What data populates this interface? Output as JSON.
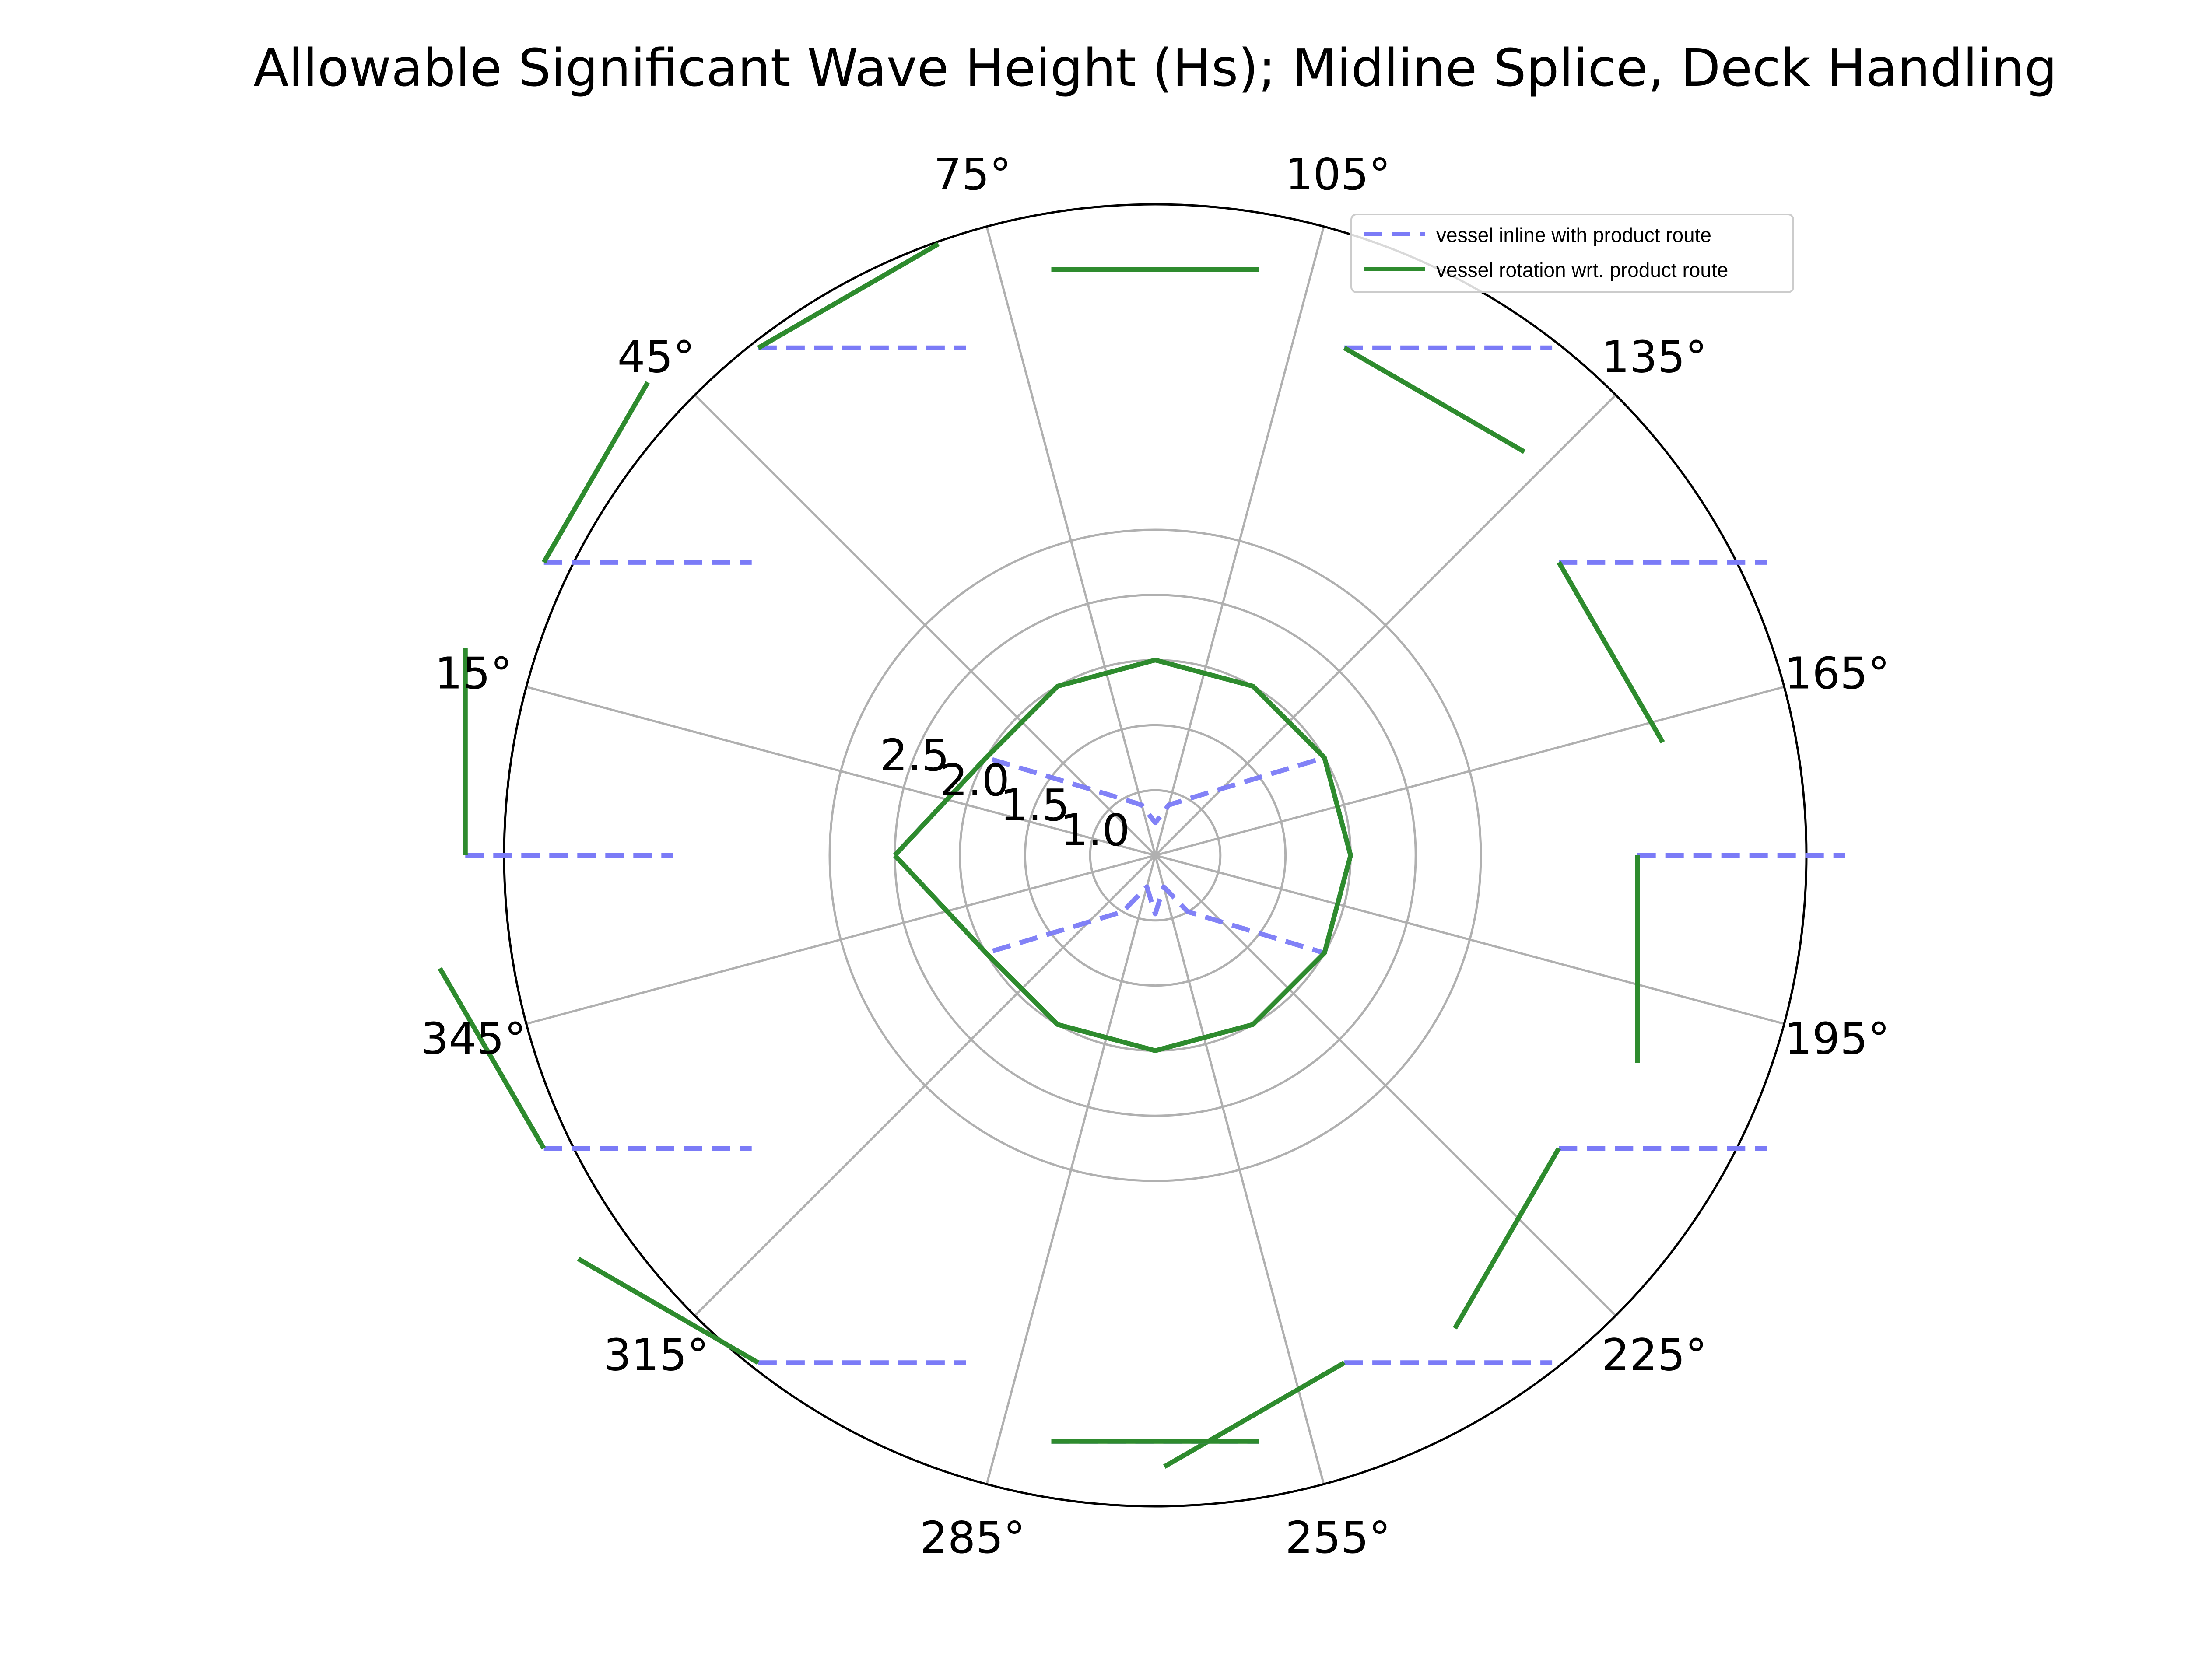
{
  "chart_data": {
    "type": "line",
    "subtype": "polar",
    "title": "Allowable Significant Wave Height (Hs); Midline Splice, Deck Handling",
    "theta_direction": "clockwise",
    "theta_zero_location": "left",
    "theta_tick_labels": [
      "15°",
      "45°",
      "75°",
      "105°",
      "135°",
      "165°",
      "195°",
      "225°",
      "255°",
      "285°",
      "315°",
      "345°"
    ],
    "radial_tick_labels": [
      "1.0",
      "1.5",
      "2.0",
      "2.5"
    ],
    "rlim": [
      0.5,
      5.5
    ],
    "grid": true,
    "legend_location": "upper right",
    "series": [
      {
        "name": "vessel inline with product route",
        "style": "dashed",
        "color": "#7b7bf7",
        "points": [
          {
            "theta": 0,
            "r": 2.5
          },
          {
            "theta": 30,
            "r": 2.0
          },
          {
            "theta": 60,
            "r": 1.0
          },
          {
            "theta": 75,
            "r": 0.9
          },
          {
            "theta": 90,
            "r": 0.75
          },
          {
            "theta": 105,
            "r": 0.9
          },
          {
            "theta": 120,
            "r": 1.0
          },
          {
            "theta": 150,
            "r": 2.0
          },
          {
            "theta": 180,
            "r": 2.0
          },
          {
            "theta": 210,
            "r": 2.0
          },
          {
            "theta": 240,
            "r": 1.0
          },
          {
            "theta": 255,
            "r": 0.75
          },
          {
            "theta": 270,
            "r": 0.95
          },
          {
            "theta": 285,
            "r": 0.75
          },
          {
            "theta": 300,
            "r": 1.0
          },
          {
            "theta": 330,
            "r": 2.0
          },
          {
            "theta": 360,
            "r": 2.5
          }
        ]
      },
      {
        "name": "vessel rotation wrt. product route",
        "style": "solid",
        "color": "#2e8b2e",
        "points": [
          {
            "theta": 0,
            "r": 2.5
          },
          {
            "theta": 30,
            "r": 2.0
          },
          {
            "theta": 60,
            "r": 2.0
          },
          {
            "theta": 90,
            "r": 2.0
          },
          {
            "theta": 120,
            "r": 2.0
          },
          {
            "theta": 150,
            "r": 2.0
          },
          {
            "theta": 180,
            "r": 2.0
          },
          {
            "theta": 210,
            "r": 2.0
          },
          {
            "theta": 240,
            "r": 2.0
          },
          {
            "theta": 270,
            "r": 2.0
          },
          {
            "theta": 300,
            "r": 2.0
          },
          {
            "theta": 330,
            "r": 2.0
          },
          {
            "theta": 360,
            "r": 2.5
          }
        ]
      }
    ],
    "segment_pairs": [
      {
        "theta": 90,
        "r": 5.0,
        "inline_angle": 0,
        "rotation_angle": 0
      },
      {
        "theta": 120,
        "r": 5.0,
        "inline_angle": 0,
        "rotation_angle": -30
      },
      {
        "theta": 150,
        "r": 5.0,
        "inline_angle": 0,
        "rotation_angle": -60
      },
      {
        "theta": 180,
        "r": 5.0,
        "inline_angle": 0,
        "rotation_angle": -90
      },
      {
        "theta": 210,
        "r": 5.0,
        "inline_angle": 0,
        "rotation_angle": -120
      },
      {
        "theta": 240,
        "r": 5.0,
        "inline_angle": 0,
        "rotation_angle": -150
      },
      {
        "theta": 270,
        "r": 5.0,
        "inline_angle": 0,
        "rotation_angle": 0
      },
      {
        "theta": 300,
        "r": 5.0,
        "inline_angle": 0,
        "rotation_angle": 150
      },
      {
        "theta": 330,
        "r": 5.0,
        "inline_angle": 0,
        "rotation_angle": 120
      },
      {
        "theta": 0,
        "r": 5.0,
        "inline_angle": 0,
        "rotation_angle": 90
      },
      {
        "theta": 30,
        "r": 5.0,
        "inline_angle": 0,
        "rotation_angle": 60
      },
      {
        "theta": 60,
        "r": 5.0,
        "inline_angle": 0,
        "rotation_angle": 30
      }
    ]
  }
}
